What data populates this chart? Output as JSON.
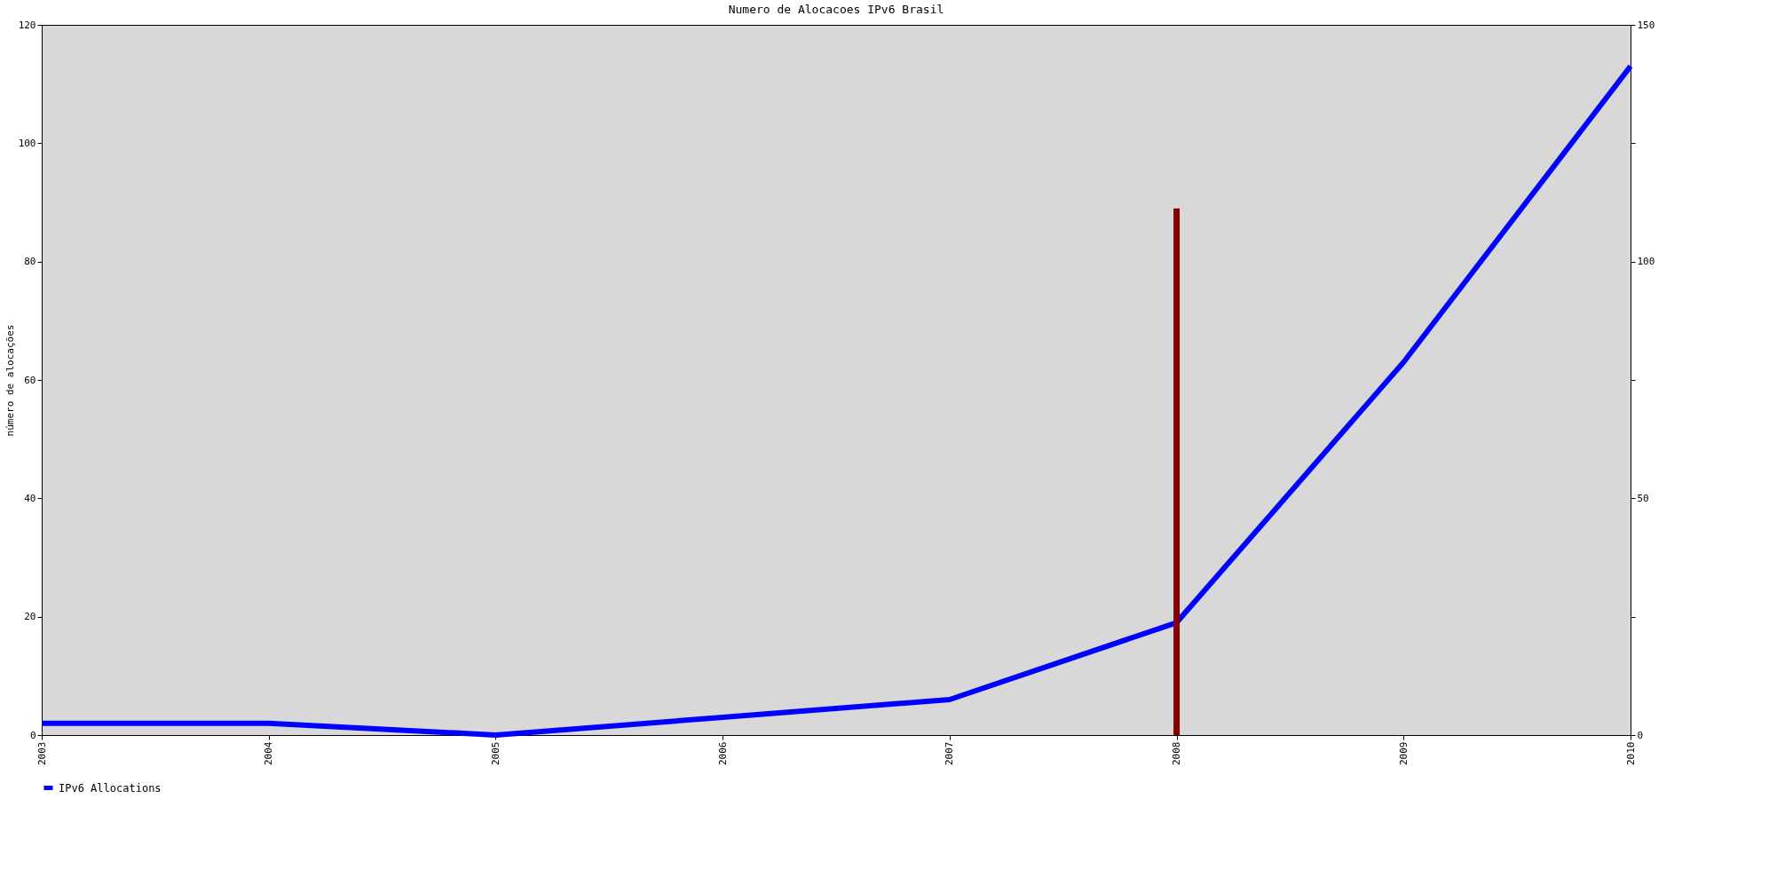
{
  "chart_data": {
    "type": "line",
    "title": "Numero de Alocacoes IPv6 Brasil",
    "ylabel": "número de alocações",
    "categories": [
      "2003",
      "2004",
      "2005",
      "2006",
      "2007",
      "2008",
      "2009",
      "2010"
    ],
    "series": [
      {
        "name": "IPv6 Allocations",
        "color": "#0000ff",
        "values": [
          2,
          2,
          0,
          3,
          6,
          19,
          63,
          113
        ]
      },
      {
        "type": "bar",
        "color": "#800000",
        "values": [
          null,
          null,
          null,
          null,
          null,
          89,
          null,
          null
        ]
      }
    ],
    "ylim": [
      0,
      120
    ],
    "yticks": [
      0,
      20,
      40,
      60,
      80,
      100,
      120
    ],
    "y2lim": [
      0,
      150
    ],
    "y2ticks": [
      0,
      {
        "value": 25,
        "label": null
      },
      50,
      {
        "value": 75,
        "label": null
      },
      100,
      {
        "value": 125,
        "label": null
      },
      150
    ],
    "legend": "bottom",
    "grid": false,
    "marker": "none",
    "line_style": "solid"
  }
}
